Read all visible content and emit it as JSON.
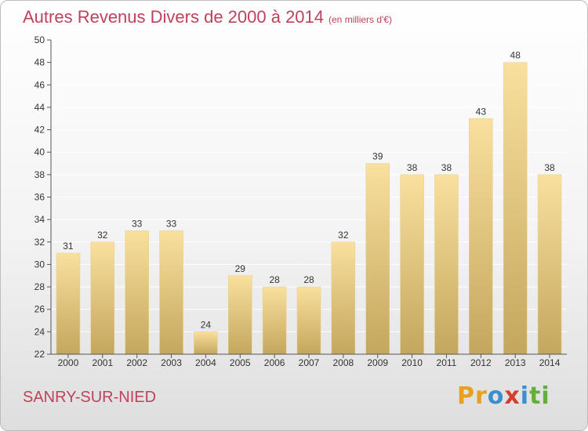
{
  "header": {
    "title": "Autres Revenus Divers de 2000 à 2014",
    "unit": "(en milliers d'€)"
  },
  "footer": {
    "location": "SANRY-SUR-NIED",
    "logo_letters": [
      "P",
      "r",
      "o",
      "x",
      "i",
      "t",
      "i"
    ],
    "logo_colors": [
      "#e8a020",
      "#e8a020",
      "#3a8fd0",
      "#d63c2f",
      "#3a8fd0",
      "#62b03a",
      "#62b03a"
    ]
  },
  "colors": {
    "bar_light": "#f9e09e",
    "bar_dark": "#c4a75e",
    "axis": "#555555",
    "grid": "#ffffff",
    "title": "#c0415a"
  },
  "chart_data": {
    "type": "bar",
    "title": "Autres Revenus Divers de 2000 à 2014",
    "xlabel": "",
    "ylabel": "",
    "ylim": [
      22,
      50
    ],
    "ytick_step": 2,
    "grid": true,
    "categories": [
      "2000",
      "2001",
      "2002",
      "2003",
      "2004",
      "2005",
      "2006",
      "2007",
      "2008",
      "2009",
      "2010",
      "2011",
      "2012",
      "2013",
      "2014"
    ],
    "values": [
      31,
      32,
      33,
      33,
      24,
      29,
      28,
      28,
      32,
      39,
      38,
      38,
      43,
      48,
      38
    ]
  }
}
